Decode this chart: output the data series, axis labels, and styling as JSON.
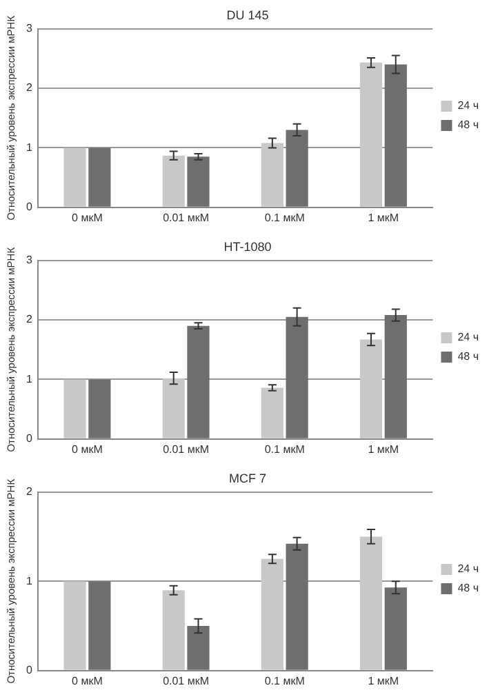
{
  "chart_data": [
    {
      "type": "bar",
      "title": "DU 145",
      "ylabel": "Относительный уровень экспрессии мРНК",
      "categories": [
        "0 мкМ",
        "0.01 мкМ",
        "0.1 мкМ",
        "1 мкМ"
      ],
      "ylim": [
        0,
        3
      ],
      "yticks": [
        0,
        1,
        2,
        3
      ],
      "grid": "y",
      "legend": "right",
      "series": [
        {
          "name": "24 ч",
          "color": "#c8c8c8",
          "values": [
            1,
            0.87,
            1.08,
            2.43
          ],
          "errors": [
            null,
            0.07,
            0.08,
            0.08
          ]
        },
        {
          "name": "48 ч",
          "color": "#6e6e6e",
          "values": [
            1,
            0.85,
            1.3,
            2.4
          ],
          "errors": [
            null,
            0.05,
            0.1,
            0.15
          ]
        }
      ]
    },
    {
      "type": "bar",
      "title": "HT-1080",
      "ylabel": "Относительный уровень экспрессии мРНК",
      "categories": [
        "0 мкМ",
        "0.01 мкМ",
        "0.1 мкМ",
        "1 мкМ"
      ],
      "ylim": [
        0,
        3
      ],
      "yticks": [
        0,
        1,
        2,
        3
      ],
      "grid": "y",
      "legend": "right",
      "series": [
        {
          "name": "24 ч",
          "color": "#c8c8c8",
          "values": [
            1,
            1.02,
            0.86,
            1.67
          ],
          "errors": [
            null,
            0.1,
            0.05,
            0.1
          ]
        },
        {
          "name": "48 ч",
          "color": "#6e6e6e",
          "values": [
            1,
            1.9,
            2.05,
            2.08
          ],
          "errors": [
            null,
            0.05,
            0.15,
            0.1
          ]
        }
      ]
    },
    {
      "type": "bar",
      "title": "MCF 7",
      "ylabel": "Относительный уровень экспрессии мРНК",
      "categories": [
        "0 мкМ",
        "0.01 мкМ",
        "0.1 мкМ",
        "1 мкМ"
      ],
      "ylim": [
        0,
        2
      ],
      "yticks": [
        0,
        1,
        2
      ],
      "grid": "y",
      "legend": "right",
      "series": [
        {
          "name": "24 ч",
          "color": "#c8c8c8",
          "values": [
            1,
            0.9,
            1.25,
            1.5
          ],
          "errors": [
            null,
            0.05,
            0.05,
            0.08
          ]
        },
        {
          "name": "48 ч",
          "color": "#6e6e6e",
          "values": [
            1,
            0.5,
            1.42,
            0.93
          ],
          "errors": [
            null,
            0.08,
            0.07,
            0.07
          ]
        }
      ]
    }
  ]
}
